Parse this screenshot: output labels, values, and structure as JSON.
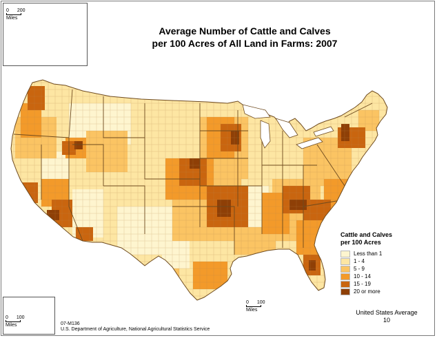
{
  "title": {
    "line1": "Average Number of Cattle and Calves",
    "line2": "per 100 Acres of All Land in Farms:  2007"
  },
  "legend": {
    "title_line1": "Cattle and Calves",
    "title_line2": "per 100 Acres",
    "items": [
      {
        "label": "Less than 1",
        "color": "#fef5cf"
      },
      {
        "label": "1 - 4",
        "color": "#fde6a3"
      },
      {
        "label": "5 - 9",
        "color": "#fbc463"
      },
      {
        "label": "10 - 14",
        "color": "#f39a2a"
      },
      {
        "label": "15 - 19",
        "color": "#c9650f"
      },
      {
        "label": "20 or more",
        "color": "#8e3f06"
      }
    ]
  },
  "us_average": {
    "label": "United States Average",
    "value": "10"
  },
  "scales": {
    "alaska": {
      "start": "0",
      "end": "200",
      "unit": "Miles"
    },
    "mainland": {
      "start": "0",
      "end": "100",
      "unit": "Miles"
    },
    "hawaii": {
      "start": "0",
      "end": "100",
      "unit": "Miles"
    }
  },
  "credit": {
    "map_id": "07-M136",
    "source": "U.S. Department of Agriculture, National Agricultural Statistics Service"
  },
  "colors": {
    "border": "#8a6a40",
    "water": "#ffffff"
  }
}
